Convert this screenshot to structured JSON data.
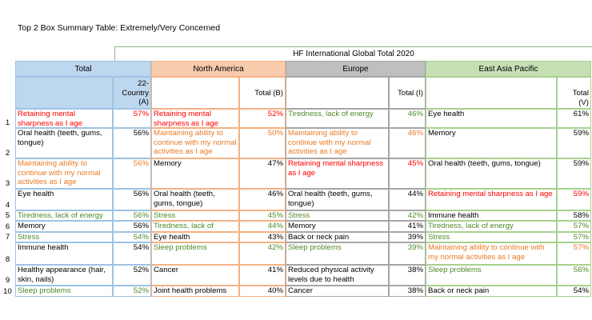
{
  "title": "Top 2 Box Summary Table: Extremely/Very Concerned",
  "header": "HF International Global Total 2020",
  "regions": [
    {
      "name": "Total",
      "column": "22-Country (A)",
      "color": "#bdd7ee"
    },
    {
      "name": "North America",
      "column": "Total (B)",
      "color": "#f8cbad"
    },
    {
      "name": "Europe",
      "column": "Total (I)",
      "color": "#bfbfbf"
    },
    {
      "name": "East Asia Pacific",
      "column": "Total (V)",
      "color": "#c6e0b4"
    }
  ],
  "rows": [
    {
      "rank": "1",
      "cells": [
        {
          "item": "Retaining mental sharpness as I age",
          "pct": "57%",
          "color": "#ff0000"
        },
        {
          "item": "Retaining mental sharpness as I age",
          "pct": "52%",
          "color": "#ff0000"
        },
        {
          "item": "Tiredness, lack of energy",
          "pct": "46%",
          "color": "#4e8a2a"
        },
        {
          "item": "Eye health",
          "pct": "61%",
          "color": "#000000"
        }
      ]
    },
    {
      "rank": "2",
      "cells": [
        {
          "item": "Oral health (teeth, gums, tongue)",
          "pct": "56%",
          "color": "#000000"
        },
        {
          "item": "Maintaining ability to continue with my normal activities as I age",
          "pct": "50%",
          "color": "#e97b25"
        },
        {
          "item": "Maintaining ability to continue with my normal activities as I age",
          "pct": "46%",
          "color": "#e97b25"
        },
        {
          "item": "Memory",
          "pct": "59%",
          "color": "#000000"
        }
      ]
    },
    {
      "rank": "3",
      "cells": [
        {
          "item": "Maintaining ability to continue with my normal activities as I age",
          "pct": "56%",
          "color": "#e97b25"
        },
        {
          "item": "Memory",
          "pct": "47%",
          "color": "#000000"
        },
        {
          "item": "Retaining mental sharpness as I age",
          "pct": "45%",
          "color": "#ff0000"
        },
        {
          "item": "Oral health (teeth, gums, tongue)",
          "pct": "59%",
          "color": "#000000"
        }
      ]
    },
    {
      "rank": "4",
      "cells": [
        {
          "item": "Eye health",
          "pct": "56%",
          "color": "#000000"
        },
        {
          "item": "Oral health (teeth, gums, tongue)",
          "pct": "46%",
          "color": "#000000"
        },
        {
          "item": "Oral health (teeth, gums, tongue)",
          "pct": "44%",
          "color": "#000000"
        },
        {
          "item": "Retaining mental sharpness as I age",
          "pct": "59%",
          "color": "#ff0000"
        }
      ]
    },
    {
      "rank": "5",
      "cells": [
        {
          "item": "Tiredness, lack of energy",
          "pct": "56%",
          "color": "#4e8a2a"
        },
        {
          "item": "Stress",
          "pct": "45%",
          "color": "#4e8a2a"
        },
        {
          "item": "Stress",
          "pct": "42%",
          "color": "#4e8a2a"
        },
        {
          "item": "Immune health",
          "pct": "58%",
          "color": "#000000"
        }
      ]
    },
    {
      "rank": "6",
      "cells": [
        {
          "item": "Memory",
          "pct": "56%",
          "color": "#000000"
        },
        {
          "item": "Tiredness, lack of energy",
          "pct": "44%",
          "color": "#4e8a2a"
        },
        {
          "item": "Memory",
          "pct": "41%",
          "color": "#000000"
        },
        {
          "item": "Tiredness, lack of energy",
          "pct": "57%",
          "color": "#4e8a2a"
        }
      ]
    },
    {
      "rank": "7",
      "cells": [
        {
          "item": "Stress",
          "pct": "54%",
          "color": "#4e8a2a"
        },
        {
          "item": "Eye health",
          "pct": "43%",
          "color": "#000000"
        },
        {
          "item": "Back or neck pain",
          "pct": "39%",
          "color": "#000000"
        },
        {
          "item": "Stress",
          "pct": "57%",
          "color": "#4e8a2a"
        }
      ]
    },
    {
      "rank": "8",
      "cells": [
        {
          "item": "Immune health",
          "pct": "54%",
          "color": "#000000"
        },
        {
          "item": "Sleep problems",
          "pct": "42%",
          "color": "#4e8a2a"
        },
        {
          "item": "Sleep problems",
          "pct": "39%",
          "color": "#4e8a2a"
        },
        {
          "item": "Maintaining ability to continue with my normal activities as I age",
          "pct": "57%",
          "color": "#e97b25"
        }
      ]
    },
    {
      "rank": "9",
      "cells": [
        {
          "item": "Healthy appearance (hair, skin, nails)",
          "pct": "52%",
          "color": "#000000"
        },
        {
          "item": "Cancer",
          "pct": "41%",
          "color": "#000000"
        },
        {
          "item": "Reduced physical activity levels due to health",
          "pct": "38%",
          "color": "#000000"
        },
        {
          "item": "Sleep problems",
          "pct": "56%",
          "color": "#4e8a2a"
        }
      ]
    },
    {
      "rank": "10",
      "cells": [
        {
          "item": "Sleep problems",
          "pct": "52%",
          "color": "#4e8a2a"
        },
        {
          "item": "Joint health problems",
          "pct": "40%",
          "color": "#000000"
        },
        {
          "item": "Cancer",
          "pct": "38%",
          "color": "#000000"
        },
        {
          "item": "Back or neck pain",
          "pct": "54%",
          "color": "#000000"
        }
      ]
    }
  ]
}
